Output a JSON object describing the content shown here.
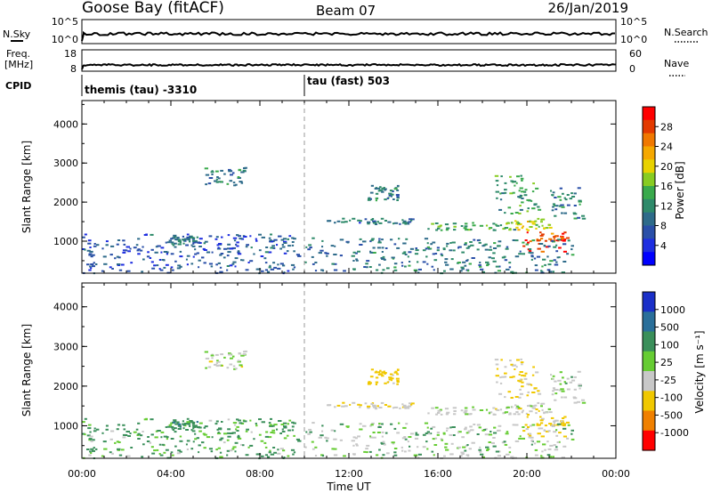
{
  "header": {
    "station": "Goose Bay (fitACF)",
    "beam": "Beam 07",
    "date": "26/Jan/2019"
  },
  "strips": {
    "nsky_label": "N.Sky",
    "nsky_ticks": [
      "10^5",
      "10^0"
    ],
    "nsearch_label": "N.Search",
    "nsearch_ticks": [
      "10^5",
      "10^0"
    ],
    "freq_label_line1": "Freq.",
    "freq_label_line2": "[MHz]",
    "freq_ticks": [
      "18",
      "8"
    ],
    "nave_label": "Nave",
    "nave_ticks": [
      "60",
      "0"
    ],
    "cpid_label": "CPID",
    "cpid_segments": [
      {
        "label": "themis (tau) -3310",
        "start_hour": 0
      },
      {
        "label": "tau (fast) 503",
        "start_hour": 10
      }
    ]
  },
  "colorbars": {
    "power": {
      "label": "Power [dB]",
      "ticks": [
        "28",
        "24",
        "20",
        "16",
        "12",
        "8",
        "4"
      ],
      "colors": [
        "#ff0000",
        "#e33a00",
        "#f07800",
        "#f5a800",
        "#e8d200",
        "#88cc22",
        "#3aaa4c",
        "#2e8a6a",
        "#2e6b8a",
        "#2a4fa8",
        "#1e2ee0",
        "#0000ff"
      ]
    },
    "velocity": {
      "label": "Velocity [m s⁻¹]",
      "ticks": [
        "1000",
        "500",
        "100",
        "25",
        "-25",
        "-100",
        "-500",
        "-1000"
      ],
      "colors": [
        "#1a2fc8",
        "#2a6f9a",
        "#3a8f5a",
        "#66cc33",
        "#c8c8c8",
        "#f0c800",
        "#f08000",
        "#ff0000"
      ]
    }
  },
  "axes": {
    "ylabel": "Slant Range [km]",
    "xlabel": "Time UT"
  },
  "chart_data": {
    "type": "heatmap",
    "panels": [
      "Power [dB]",
      "Velocity [m s⁻¹]"
    ],
    "x_ticks": [
      "00:00",
      "04:00",
      "08:00",
      "12:00",
      "16:00",
      "20:00",
      "00:00"
    ],
    "x_tick_hours": [
      0,
      4,
      8,
      12,
      16,
      20,
      24
    ],
    "xlim": [
      0,
      24
    ],
    "y_ticks": [
      "1000",
      "2000",
      "3000",
      "4000"
    ],
    "y_tick_values": [
      1000,
      2000,
      3000,
      4000
    ],
    "ylim": [
      180,
      4600
    ],
    "mode_change_hour": 10,
    "echo_regions": [
      {
        "t0": 0.0,
        "t1": 9.8,
        "r0": 200,
        "r1": 1200,
        "power": 6,
        "velocity": 60
      },
      {
        "t0": 5.5,
        "t1": 7.3,
        "r0": 2450,
        "r1": 2900,
        "power": 10,
        "velocity": 10
      },
      {
        "t0": 3.9,
        "t1": 5.2,
        "r0": 900,
        "r1": 1150,
        "power": 8,
        "velocity": 80
      },
      {
        "t0": 11.0,
        "t1": 15.5,
        "r0": 1450,
        "r1": 1600,
        "power": 8,
        "velocity": -15
      },
      {
        "t0": 15.5,
        "t1": 19.5,
        "r0": 1300,
        "r1": 1500,
        "power": 13,
        "velocity": 10
      },
      {
        "t0": 19.0,
        "t1": 21.0,
        "r0": 1300,
        "r1": 1600,
        "power": 18,
        "velocity": 5
      },
      {
        "t0": 19.8,
        "t1": 21.8,
        "r0": 750,
        "r1": 1250,
        "power": 27,
        "velocity": -40
      },
      {
        "t0": 21.0,
        "t1": 22.6,
        "r0": 1600,
        "r1": 2400,
        "power": 10,
        "velocity": 15
      },
      {
        "t0": 12.8,
        "t1": 14.2,
        "r0": 2050,
        "r1": 2450,
        "power": 10,
        "velocity": -60
      },
      {
        "t0": 10.0,
        "t1": 22.0,
        "r0": 200,
        "r1": 1100,
        "power": 9,
        "velocity": 30
      },
      {
        "t0": 18.5,
        "t1": 20.5,
        "r0": 1700,
        "r1": 2700,
        "power": 12,
        "velocity": -30
      }
    ]
  }
}
